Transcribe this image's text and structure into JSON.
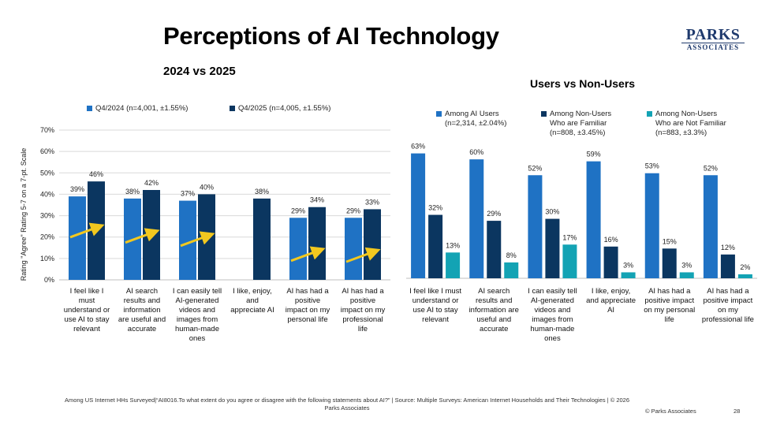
{
  "page": {
    "title": "Perceptions of AI Technology",
    "subtitle": "2024 vs 2025",
    "right_title": "Users vs Non-Users",
    "logo_line1": "PARKS",
    "logo_line2": "ASSOCIATES",
    "footer_note": "Among US Internet HHs Surveyed|“AI8016.To what extent do you agree or disagree with the following statements about AI?” | Source: Multiple Surveys: American Internet Households and Their Technologies | © 2026 Parks Associates",
    "copyright": "© Parks Associates",
    "page_number": "28"
  },
  "legend_left": [
    {
      "label": "Q4/2024 (n=4,001, ±1.55%)",
      "color": "#1f72c4"
    },
    {
      "label": "Q4/2025 (n=4,005, ±1.55%)",
      "color": "#0b3660"
    }
  ],
  "legend_right": [
    {
      "label": "Among AI Users\n(n=2,314, ±2.04%)",
      "color": "#1f72c4"
    },
    {
      "label": "Among Non-Users\nWho are Familiar\n(n=808, ±3.45%)",
      "color": "#0b3660"
    },
    {
      "label": "Among Non-Users\nWho are Not Familiar\n(n=883, ±3.3%)",
      "color": "#13a3b4"
    }
  ],
  "chart_data": [
    {
      "type": "bar",
      "ylabel": "Rating \"Agree\" Rating 5-7 on a 7-pt. Scale",
      "ylim": [
        0,
        70
      ],
      "yticks": [
        "0%",
        "10%",
        "20%",
        "30%",
        "40%",
        "50%",
        "60%",
        "70%"
      ],
      "grid": true,
      "trend_arrows": true,
      "categories": [
        "I feel like I\nmust\nunderstand or\nuse AI to stay\nrelevant",
        "AI search\nresults and\ninformation\nare useful and\naccurate",
        "I can easily tell\nAI-generated\nvideos and\nimages from\nhuman-made\nones",
        "I like, enjoy,\nand\nappreciate AI",
        "AI has had a\npositive\nimpact on my\npersonal life",
        "AI has had a\npositive\nimpact on my\nprofessional\nlife"
      ],
      "series": [
        {
          "name": "Q4/2024 (n=4,001, ±1.55%)",
          "color": "#1f72c4",
          "values": [
            39,
            38,
            37,
            null,
            29,
            29
          ],
          "labels": [
            "39%",
            "38%",
            "37%",
            "",
            "29%",
            "29%"
          ]
        },
        {
          "name": "Q4/2025 (n=4,005, ±1.55%)",
          "color": "#0b3660",
          "values": [
            46,
            42,
            40,
            38,
            34,
            33
          ],
          "labels": [
            "46%",
            "42%",
            "40%",
            "38%",
            "34%",
            "33%"
          ]
        }
      ]
    },
    {
      "type": "bar",
      "ylim": [
        0,
        70
      ],
      "grid": false,
      "categories": [
        "I feel like I must\nunderstand or\nuse AI to stay\nrelevant",
        "AI search\nresults and\ninformation are\nuseful and\naccurate",
        "I can easily tell\nAI-generated\nvideos and\nimages from\nhuman-made\nones",
        "I like, enjoy,\nand appreciate\nAI",
        "AI has had a\npositive impact\non my personal\nlife",
        "AI has had a\npositive impact\non my\nprofessional life"
      ],
      "series": [
        {
          "name": "Among AI Users (n=2,314, ±2.04%)",
          "color": "#1f72c4",
          "values": [
            63,
            60,
            52,
            59,
            53,
            52
          ],
          "labels": [
            "63%",
            "60%",
            "52%",
            "59%",
            "53%",
            "52%"
          ]
        },
        {
          "name": "Among Non-Users Who are Familiar (n=808, ±3.45%)",
          "color": "#0b3660",
          "values": [
            32,
            29,
            30,
            16,
            15,
            12
          ],
          "labels": [
            "32%",
            "29%",
            "30%",
            "16%",
            "15%",
            "12%"
          ]
        },
        {
          "name": "Among Non-Users Who are Not Familiar (n=883, ±3.3%)",
          "color": "#13a3b4",
          "values": [
            13,
            8,
            17,
            3,
            3,
            2
          ],
          "labels": [
            "13%",
            "8%",
            "17%",
            "3%",
            "3%",
            "2%"
          ]
        }
      ]
    }
  ]
}
